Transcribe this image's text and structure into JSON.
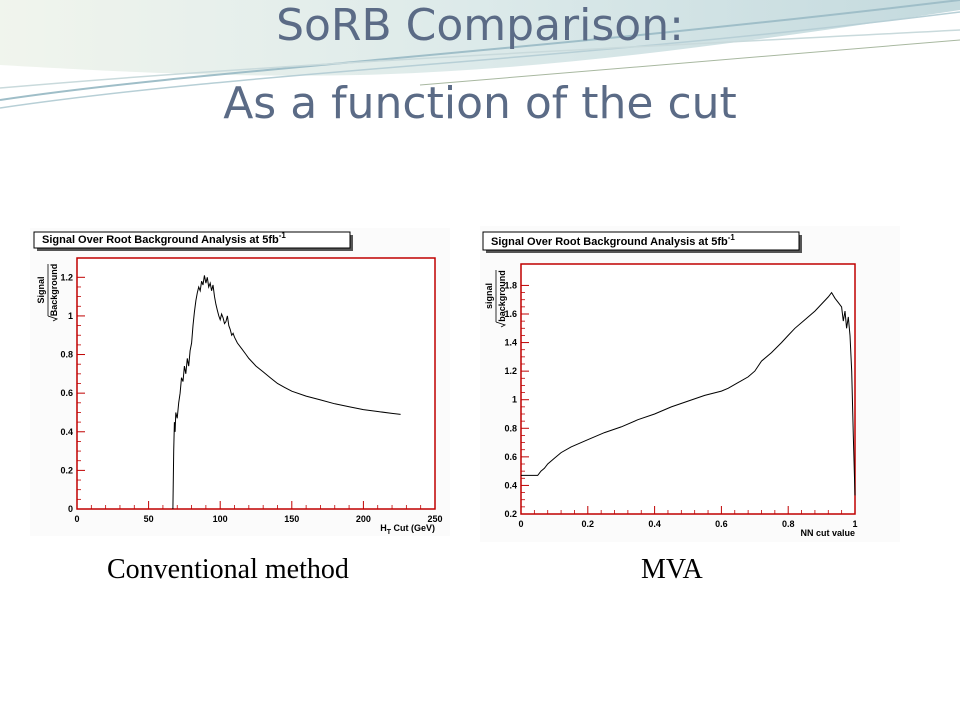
{
  "slide": {
    "title_line1": "SoRB  Comparison:",
    "title_line2": "As a function of the cut",
    "colors": {
      "title": "#5b6b86",
      "axis": "#c00000",
      "curve": "#000000",
      "swoosh": "#a9c7cf"
    }
  },
  "chart_data": [
    {
      "type": "line",
      "panel_title": "Signal Over Root Background Analysis at 5fb",
      "panel_title_sup": "-1",
      "caption": "Conventional method",
      "xlabel_main": "H",
      "xlabel_sub": "T",
      "xlabel_rest": " Cut (GeV)",
      "ylabel_top": "Signal",
      "ylabel_bottom": "Background",
      "xlim": [
        0,
        250
      ],
      "ylim": [
        0,
        1.3
      ],
      "x_ticks": [
        0,
        50,
        100,
        150,
        200,
        250
      ],
      "x_tick_labels": [
        "0",
        "50",
        "100",
        "150",
        "200",
        "250"
      ],
      "y_ticks": [
        0,
        0.2,
        0.4,
        0.6,
        0.8,
        1,
        1.2
      ],
      "y_tick_labels": [
        "0",
        "0.2",
        "0.4",
        "0.6",
        "0.8",
        "1",
        "1.2"
      ],
      "series": [
        {
          "x": [
            67,
            67.5,
            68,
            68.5,
            69,
            70,
            71,
            72,
            73,
            74,
            75,
            76,
            77,
            78,
            79,
            80,
            81,
            82,
            83,
            84,
            85,
            86,
            87,
            88,
            89,
            90,
            91,
            92,
            93,
            94,
            95,
            96,
            97,
            98,
            99,
            100,
            101,
            102,
            103,
            104,
            105,
            106,
            107,
            108,
            109,
            110,
            112,
            115,
            118,
            120,
            125,
            130,
            135,
            140,
            145,
            150,
            160,
            170,
            180,
            190,
            200,
            210,
            220,
            226
          ],
          "y": [
            0,
            0.3,
            0.45,
            0.4,
            0.5,
            0.47,
            0.55,
            0.6,
            0.68,
            0.66,
            0.74,
            0.7,
            0.78,
            0.74,
            0.82,
            0.86,
            0.95,
            1.02,
            1.08,
            1.12,
            1.15,
            1.13,
            1.18,
            1.16,
            1.21,
            1.17,
            1.2,
            1.15,
            1.17,
            1.13,
            1.16,
            1.1,
            1.06,
            1.03,
            1.0,
            0.98,
            1.01,
            0.99,
            0.96,
            0.97,
            1.0,
            0.95,
            0.93,
            0.9,
            0.91,
            0.89,
            0.86,
            0.83,
            0.8,
            0.78,
            0.74,
            0.71,
            0.68,
            0.65,
            0.63,
            0.61,
            0.585,
            0.565,
            0.545,
            0.53,
            0.515,
            0.505,
            0.495,
            0.49
          ]
        }
      ]
    },
    {
      "type": "line",
      "panel_title": "Signal Over Root Background Analysis at 5fb",
      "panel_title_sup": "-1",
      "caption": "MVA",
      "xlabel": "NN cut value",
      "ylabel_top": "signal",
      "ylabel_bottom": "background",
      "xlim": [
        0,
        1
      ],
      "ylim": [
        0.2,
        1.95
      ],
      "x_ticks": [
        0,
        0.2,
        0.4,
        0.6,
        0.8,
        1
      ],
      "x_tick_labels": [
        "0",
        "0.2",
        "0.4",
        "0.6",
        "0.8",
        "1"
      ],
      "y_ticks": [
        0.2,
        0.4,
        0.6,
        0.8,
        1,
        1.2,
        1.4,
        1.6,
        1.8
      ],
      "y_tick_labels": [
        "0.2",
        "0.4",
        "0.6",
        "0.8",
        "1",
        "1.2",
        "1.4",
        "1.6",
        "1.8"
      ],
      "series": [
        {
          "x": [
            0,
            0.01,
            0.02,
            0.03,
            0.04,
            0.05,
            0.06,
            0.07,
            0.08,
            0.1,
            0.12,
            0.15,
            0.2,
            0.25,
            0.3,
            0.35,
            0.4,
            0.45,
            0.5,
            0.55,
            0.6,
            0.62,
            0.65,
            0.68,
            0.7,
            0.72,
            0.75,
            0.78,
            0.8,
            0.82,
            0.85,
            0.88,
            0.9,
            0.92,
            0.93,
            0.94,
            0.95,
            0.96,
            0.965,
            0.97,
            0.975,
            0.98,
            0.985,
            0.99,
            0.995,
            1.0
          ],
          "y": [
            0.47,
            0.47,
            0.47,
            0.47,
            0.47,
            0.47,
            0.5,
            0.52,
            0.55,
            0.59,
            0.63,
            0.67,
            0.72,
            0.77,
            0.81,
            0.86,
            0.9,
            0.95,
            0.99,
            1.03,
            1.06,
            1.08,
            1.12,
            1.16,
            1.2,
            1.27,
            1.33,
            1.4,
            1.45,
            1.5,
            1.56,
            1.62,
            1.67,
            1.72,
            1.75,
            1.71,
            1.68,
            1.65,
            1.55,
            1.62,
            1.5,
            1.58,
            1.45,
            1.2,
            0.75,
            0.33
          ]
        }
      ]
    }
  ]
}
